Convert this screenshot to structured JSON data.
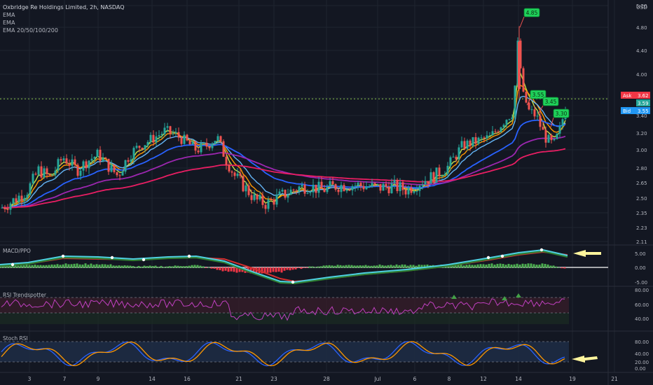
{
  "header": {
    "symbol_line": "Oxbridge Re Holdings Limited, 2h, NASDAQ",
    "indicators": [
      "EMA",
      "EMA",
      "EMA 20/50/100/200"
    ],
    "currency": "USD"
  },
  "colors": {
    "background": "#131722",
    "up": "#26a69a",
    "down": "#ef5350",
    "grid": "#1f2430",
    "ema_fast": "#ff9800",
    "ema_slow": "#c6e046",
    "ema20": "#64b5f6",
    "ema50": "#2962ff",
    "ema100": "#9c27b0",
    "ema200": "#e91e63",
    "flag_fill": "#1fd15a",
    "ask": "#f23645",
    "bid": "#2196f3",
    "last_price": "#26a69a",
    "arrow": "#fff59d"
  },
  "chart_data": [
    {
      "type": "candlestick",
      "title": "Oxbridge Re Holdings Limited, 2h, NASDAQ",
      "ylim": [
        2.11,
        5.0
      ],
      "y_ticks": [
        "5.20",
        "4.80",
        "4.40",
        "4.00",
        "3.60",
        "3.40",
        "3.20",
        "3.00",
        "2.80",
        "2.65",
        "2.50",
        "2.35",
        "2.23",
        "2.11"
      ],
      "x_ticks": [
        "3",
        "7",
        "9",
        "14",
        "16",
        "21",
        "23",
        "28",
        "Jul",
        "6",
        "8",
        "12",
        "14",
        "19",
        "21"
      ],
      "ask": {
        "label": "Ask",
        "value": "3.62"
      },
      "last": {
        "value": "3.59"
      },
      "bid": {
        "label": "Bid",
        "value": "3.55"
      },
      "last_price_line": 3.59,
      "flags": [
        "4.85",
        "3.55",
        "3.45",
        "3.30"
      ],
      "ema_series": [
        "EMA 20",
        "EMA 50",
        "EMA 100",
        "EMA 200"
      ]
    },
    {
      "type": "line",
      "title": "MACD/PPO",
      "ylim": [
        -5,
        5
      ],
      "y_ticks": [
        "5.00",
        "0.00",
        "-5.00"
      ]
    },
    {
      "type": "line",
      "title": "RSI Trendspotter",
      "ylim": [
        30,
        80
      ],
      "y_ticks": [
        "80.00",
        "60.00",
        "40.00"
      ],
      "bands": [
        70,
        50
      ]
    },
    {
      "type": "line",
      "title": "Stoch RSI",
      "ylim": [
        0,
        100
      ],
      "y_ticks": [
        "80.00",
        "40.00",
        "20.00",
        "0.00"
      ],
      "bands": [
        80,
        20
      ]
    }
  ]
}
